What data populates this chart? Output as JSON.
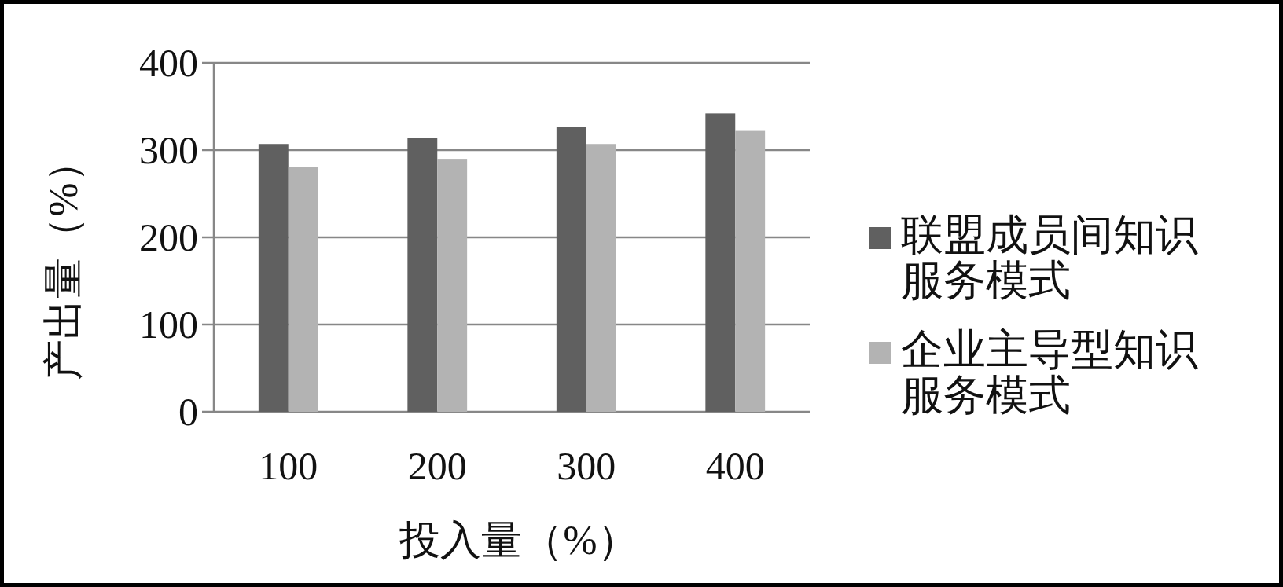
{
  "chart_data": {
    "type": "bar",
    "xlabel": "投入量（%）",
    "ylabel": "产出量（%）",
    "categories": [
      "100",
      "200",
      "300",
      "400"
    ],
    "series": [
      {
        "name": "联盟成员间知识服务模式",
        "color": "#606060",
        "values": [
          307,
          314,
          327,
          342
        ]
      },
      {
        "name": "企业主导型知识服务模式",
        "color": "#b3b3b3",
        "values": [
          281,
          290,
          307,
          322
        ]
      }
    ],
    "ylim": [
      0,
      400
    ],
    "yticks": [
      0,
      100,
      200,
      300,
      400
    ],
    "grid": "y",
    "legend": "right"
  }
}
